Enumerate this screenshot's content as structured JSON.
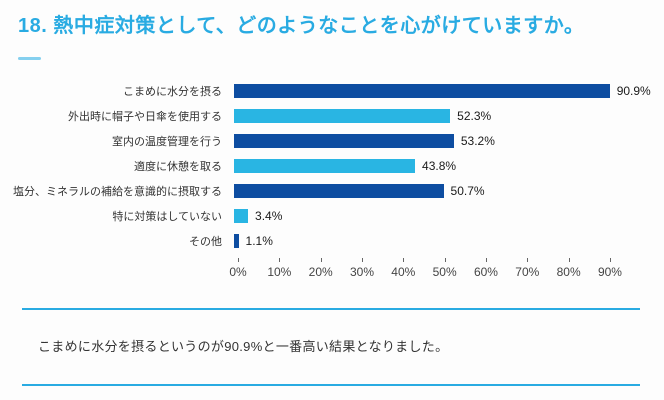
{
  "header": {
    "title": "18. 熱中症対策として、どのようなことを心がけていますか。"
  },
  "chart_data": {
    "type": "bar",
    "orientation": "horizontal",
    "categories": [
      "こまめに水分を摂る",
      "外出時に帽子や日傘を使用する",
      "室内の温度管理を行う",
      "適度に休憩を取る",
      "塩分、ミネラルの補給を意識的に摂取する",
      "特に対策はしていない",
      "その他"
    ],
    "values": [
      90.9,
      52.3,
      53.2,
      43.8,
      50.7,
      3.4,
      1.1
    ],
    "value_labels": [
      "90.9%",
      "52.3%",
      "53.2%",
      "43.8%",
      "50.7%",
      "3.4%",
      "1.1%"
    ],
    "bar_colors": [
      "#0d4da1",
      "#29b5e3",
      "#0d4da1",
      "#29b5e3",
      "#0d4da1",
      "#29b5e3",
      "#0d4da1"
    ],
    "x_ticks": [
      "0%",
      "10%",
      "20%",
      "30%",
      "40%",
      "50%",
      "60%",
      "70%",
      "80%",
      "90%"
    ],
    "xlim": [
      0,
      100
    ],
    "grid": false,
    "legend": "none",
    "title": "",
    "xlabel": "",
    "ylabel": ""
  },
  "note": {
    "text": "こまめに水分を摂るというのが90.9%と一番高い結果となりました。"
  },
  "colors": {
    "title_blue": "#29abe2",
    "accent_line_blue": "#85d0ef",
    "divider_blue": "#29abe2",
    "bar_dark_blue": "#0d4da1",
    "bar_light_blue": "#29b5e3"
  }
}
